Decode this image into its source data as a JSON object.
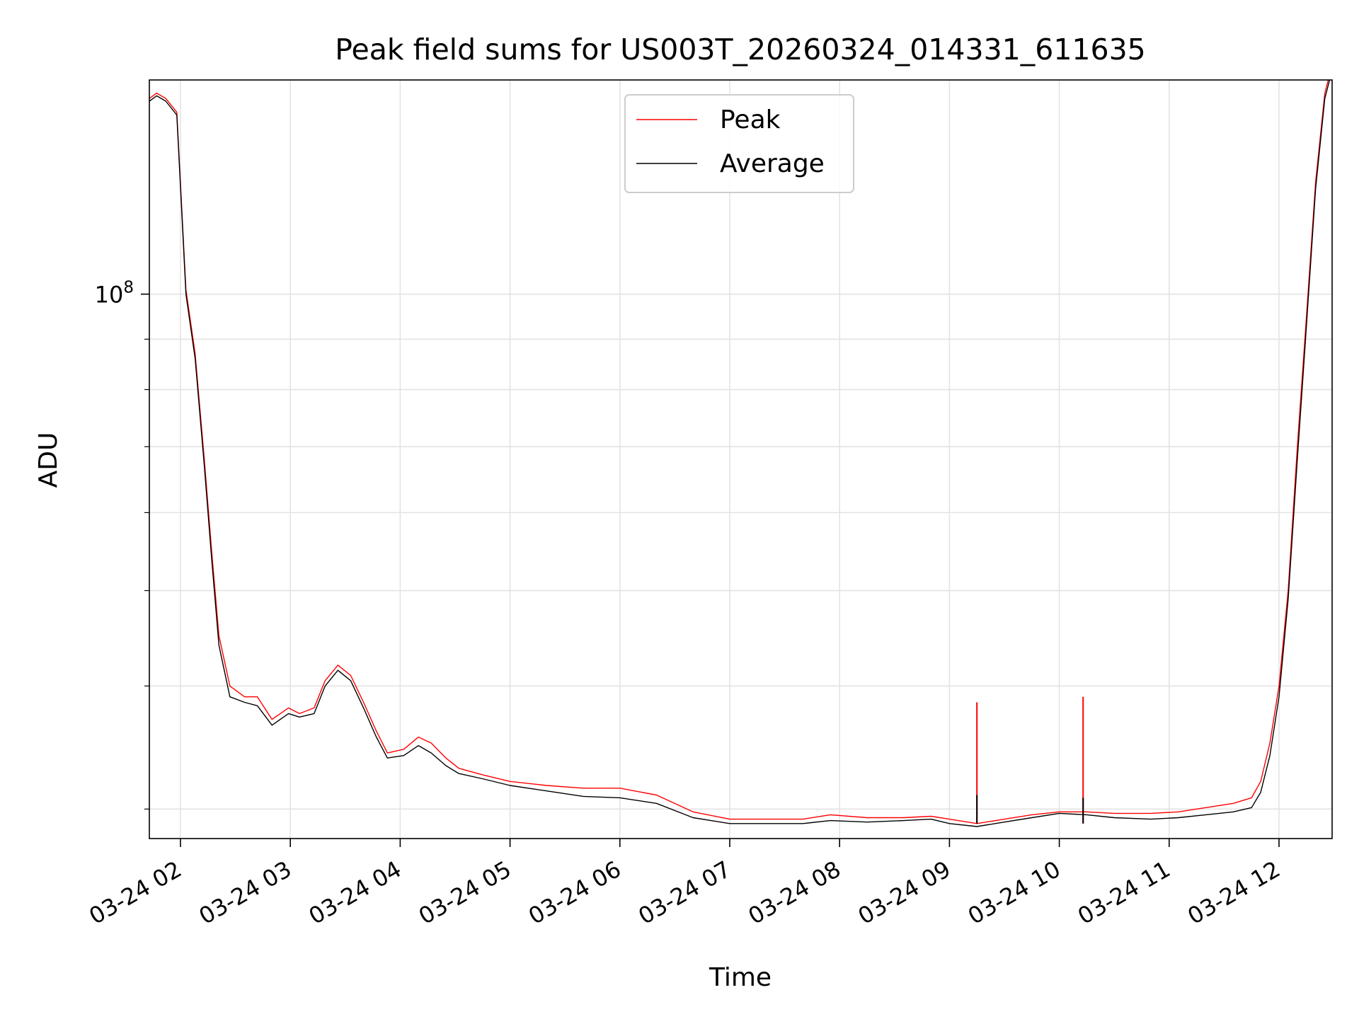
{
  "chart_data": {
    "type": "line",
    "title": "Peak field sums for US003T_20260324_014331_611635",
    "xlabel": "Time",
    "ylabel": "ADU",
    "y_scale": "log",
    "ylim": [
      28000000,
      165000000
    ],
    "xlim": [
      "2026-03-24 01:43",
      "2026-03-24 12:29"
    ],
    "x_ticks": [
      {
        "value": "2026-03-24 02:00",
        "label": "03-24 02"
      },
      {
        "value": "2026-03-24 03:00",
        "label": "03-24 03"
      },
      {
        "value": "2026-03-24 04:00",
        "label": "03-24 04"
      },
      {
        "value": "2026-03-24 05:00",
        "label": "03-24 05"
      },
      {
        "value": "2026-03-24 06:00",
        "label": "03-24 06"
      },
      {
        "value": "2026-03-24 07:00",
        "label": "03-24 07"
      },
      {
        "value": "2026-03-24 08:00",
        "label": "03-24 08"
      },
      {
        "value": "2026-03-24 09:00",
        "label": "03-24 09"
      },
      {
        "value": "2026-03-24 10:00",
        "label": "03-24 10"
      },
      {
        "value": "2026-03-24 11:00",
        "label": "03-24 11"
      },
      {
        "value": "2026-03-24 12:00",
        "label": "03-24 12"
      }
    ],
    "y_major_ticks": [
      {
        "value": 100000000,
        "base": "10",
        "exp": "8"
      }
    ],
    "y_minor_ticks": [
      30000000,
      40000000,
      50000000,
      60000000,
      70000000,
      80000000,
      90000000,
      200000000
    ],
    "grid": true,
    "legend_position": "upper center",
    "legend": [
      {
        "name": "Peak",
        "color": "#ff0000"
      },
      {
        "name": "Average",
        "color": "#000000"
      }
    ],
    "series": [
      {
        "name": "Peak",
        "color": "#ff0000",
        "x": [
          "2026-03-24 01:43",
          "2026-03-24 01:47",
          "2026-03-24 01:52",
          "2026-03-24 01:58",
          "2026-03-24 02:03",
          "2026-03-24 02:08",
          "2026-03-24 02:13",
          "2026-03-24 02:17",
          "2026-03-24 02:21",
          "2026-03-24 02:27",
          "2026-03-24 02:35",
          "2026-03-24 02:42",
          "2026-03-24 02:50",
          "2026-03-24 02:59",
          "2026-03-24 03:05",
          "2026-03-24 03:13",
          "2026-03-24 03:19",
          "2026-03-24 03:26",
          "2026-03-24 03:33",
          "2026-03-24 03:40",
          "2026-03-24 03:47",
          "2026-03-24 03:53",
          "2026-03-24 04:02",
          "2026-03-24 04:10",
          "2026-03-24 04:17",
          "2026-03-24 04:25",
          "2026-03-24 04:32",
          "2026-03-24 04:45",
          "2026-03-24 05:00",
          "2026-03-24 05:20",
          "2026-03-24 05:40",
          "2026-03-24 06:00",
          "2026-03-24 06:20",
          "2026-03-24 06:40",
          "2026-03-24 07:00",
          "2026-03-24 07:20",
          "2026-03-24 07:40",
          "2026-03-24 07:55",
          "2026-03-24 08:15",
          "2026-03-24 08:35",
          "2026-03-24 08:50",
          "2026-03-24 09:00",
          "2026-03-24 09:15",
          "2026-03-24 09:30",
          "2026-03-24 09:45",
          "2026-03-24 10:00",
          "2026-03-24 10:15",
          "2026-03-24 10:30",
          "2026-03-24 10:50",
          "2026-03-24 11:05",
          "2026-03-24 11:20",
          "2026-03-24 11:35",
          "2026-03-24 11:45",
          "2026-03-24 11:50",
          "2026-03-24 11:55",
          "2026-03-24 12:00",
          "2026-03-24 12:05",
          "2026-03-24 12:10",
          "2026-03-24 12:15",
          "2026-03-24 12:20",
          "2026-03-24 12:25",
          "2026-03-24 12:28"
        ],
        "y": [
          158000000,
          160000000,
          158000000,
          153000000,
          101000000,
          87000000,
          68000000,
          55000000,
          45000000,
          40000000,
          39000000,
          39000000,
          37000000,
          38000000,
          37500000,
          38000000,
          40500000,
          42000000,
          41000000,
          38500000,
          36000000,
          34200000,
          34500000,
          35500000,
          35000000,
          33800000,
          33000000,
          32500000,
          32000000,
          31700000,
          31500000,
          31500000,
          31000000,
          29800000,
          29300000,
          29300000,
          29300000,
          29600000,
          29400000,
          29400000,
          29500000,
          29300000,
          29000000,
          29300000,
          29600000,
          29800000,
          29800000,
          29700000,
          29700000,
          29800000,
          30100000,
          30400000,
          30800000,
          32000000,
          35000000,
          40000000,
          50000000,
          70000000,
          95000000,
          130000000,
          160000000,
          168000000
        ]
      },
      {
        "name": "Average",
        "color": "#000000",
        "x": [
          "2026-03-24 01:43",
          "2026-03-24 01:47",
          "2026-03-24 01:52",
          "2026-03-24 01:58",
          "2026-03-24 02:03",
          "2026-03-24 02:08",
          "2026-03-24 02:13",
          "2026-03-24 02:17",
          "2026-03-24 02:21",
          "2026-03-24 02:27",
          "2026-03-24 02:35",
          "2026-03-24 02:42",
          "2026-03-24 02:50",
          "2026-03-24 02:59",
          "2026-03-24 03:05",
          "2026-03-24 03:13",
          "2026-03-24 03:19",
          "2026-03-24 03:26",
          "2026-03-24 03:33",
          "2026-03-24 03:40",
          "2026-03-24 03:47",
          "2026-03-24 03:53",
          "2026-03-24 04:02",
          "2026-03-24 04:10",
          "2026-03-24 04:17",
          "2026-03-24 04:25",
          "2026-03-24 04:32",
          "2026-03-24 04:45",
          "2026-03-24 05:00",
          "2026-03-24 05:20",
          "2026-03-24 05:40",
          "2026-03-24 06:00",
          "2026-03-24 06:20",
          "2026-03-24 06:40",
          "2026-03-24 07:00",
          "2026-03-24 07:20",
          "2026-03-24 07:40",
          "2026-03-24 07:55",
          "2026-03-24 08:15",
          "2026-03-24 08:35",
          "2026-03-24 08:50",
          "2026-03-24 09:00",
          "2026-03-24 09:15",
          "2026-03-24 09:30",
          "2026-03-24 09:45",
          "2026-03-24 10:00",
          "2026-03-24 10:15",
          "2026-03-24 10:30",
          "2026-03-24 10:50",
          "2026-03-24 11:05",
          "2026-03-24 11:20",
          "2026-03-24 11:35",
          "2026-03-24 11:45",
          "2026-03-24 11:50",
          "2026-03-24 11:55",
          "2026-03-24 12:00",
          "2026-03-24 12:05",
          "2026-03-24 12:10",
          "2026-03-24 12:15",
          "2026-03-24 12:20",
          "2026-03-24 12:25",
          "2026-03-24 12:28"
        ],
        "y": [
          157000000,
          159000000,
          157000000,
          152000000,
          100000000,
          86000000,
          67000000,
          54000000,
          44000000,
          39000000,
          38500000,
          38200000,
          36500000,
          37500000,
          37200000,
          37500000,
          40000000,
          41500000,
          40500000,
          38000000,
          35500000,
          33800000,
          34000000,
          34800000,
          34200000,
          33200000,
          32600000,
          32200000,
          31700000,
          31300000,
          30900000,
          30800000,
          30400000,
          29400000,
          29000000,
          29000000,
          29000000,
          29200000,
          29100000,
          29200000,
          29300000,
          29000000,
          28800000,
          29100000,
          29400000,
          29700000,
          29600000,
          29400000,
          29300000,
          29400000,
          29600000,
          29800000,
          30100000,
          31200000,
          34000000,
          39000000,
          49000000,
          68000000,
          93000000,
          128000000,
          158000000,
          166000000
        ]
      }
    ],
    "annotations": [
      {
        "series": "Peak",
        "x": "2026-03-24 09:15",
        "y": 38500000
      },
      {
        "series": "Peak",
        "x": "2026-03-24 10:13",
        "y": 39000000
      },
      {
        "series": "Average",
        "x": "2026-03-24 09:15",
        "y": 31000000
      },
      {
        "series": "Average",
        "x": "2026-03-24 10:13",
        "y": 30800000
      }
    ]
  }
}
